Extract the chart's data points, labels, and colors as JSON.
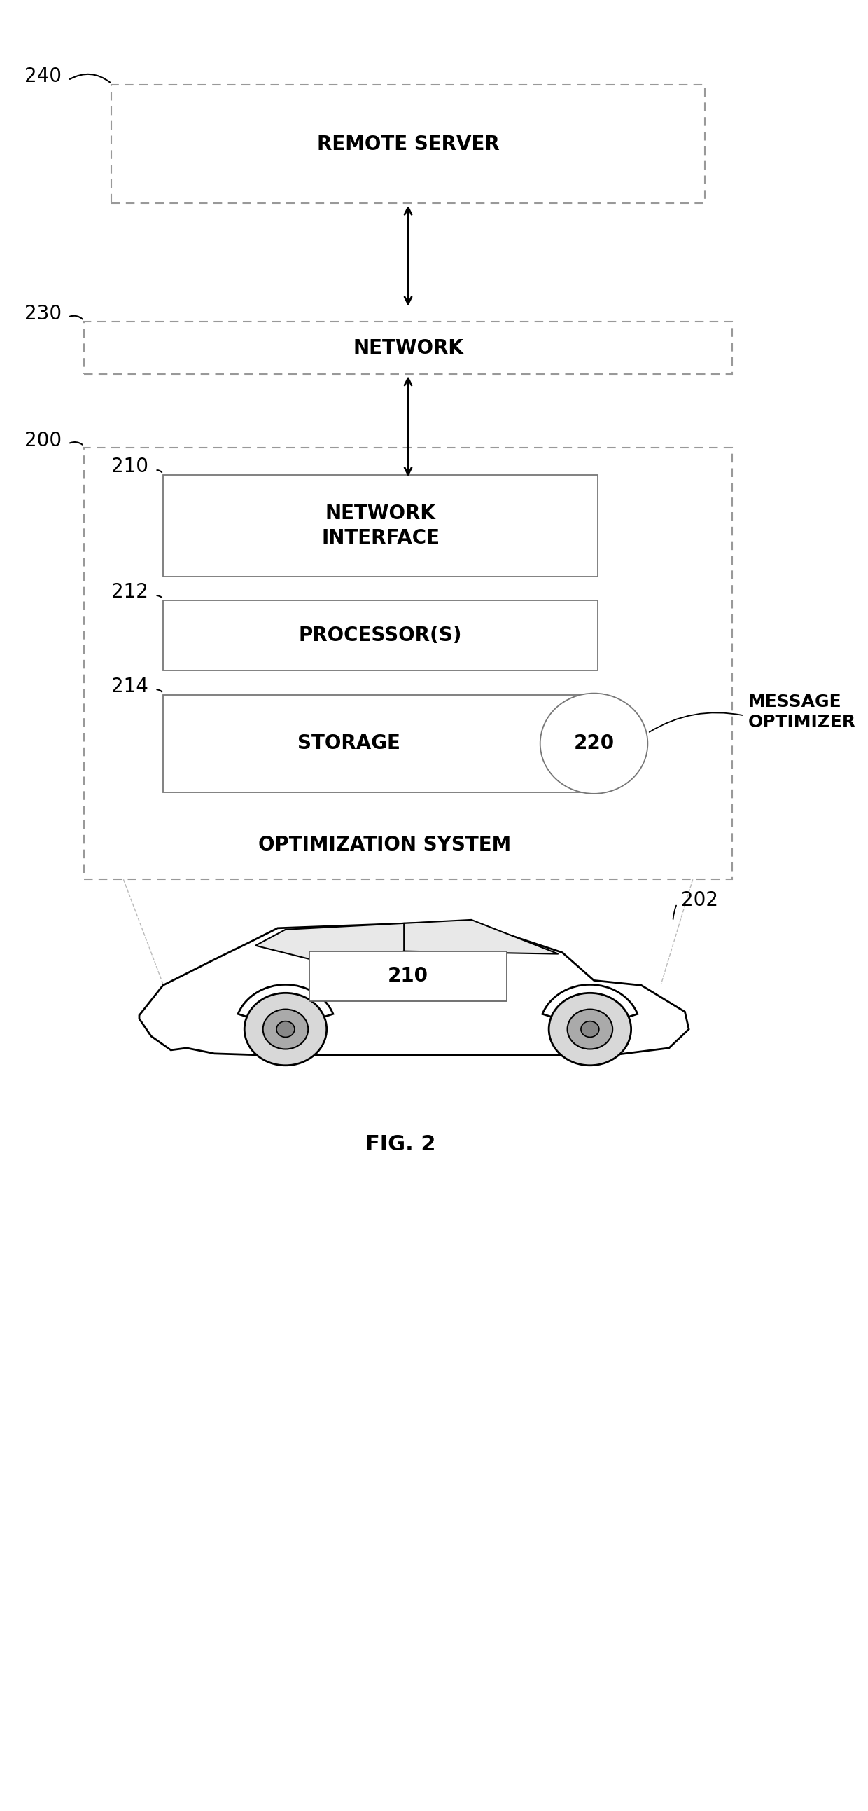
{
  "fig_width": 12.4,
  "fig_height": 25.85,
  "bg_color": "#ffffff",
  "label_240": "240",
  "label_230": "230",
  "label_200": "200",
  "label_210a": "210",
  "label_210b": "210",
  "label_212": "212",
  "label_214": "214",
  "label_220": "220",
  "label_202": "202",
  "text_remote_server": "REMOTE SERVER",
  "text_network": "NETWORK",
  "text_network_interface": "NETWORK\nINTERFACE",
  "text_processors": "PROCESSOR(S)",
  "text_storage": "STORAGE",
  "text_optimization_system": "OPTIMIZATION SYSTEM",
  "text_message_optimizer": "MESSAGE\nOPTIMIZER",
  "fig_label": "FIG. 2",
  "dash_line_color": "#999999",
  "inner_box_color": "#555555",
  "text_color": "#000000",
  "main_fontsize": 20,
  "label_fontsize": 20,
  "fig_label_fontsize": 22
}
